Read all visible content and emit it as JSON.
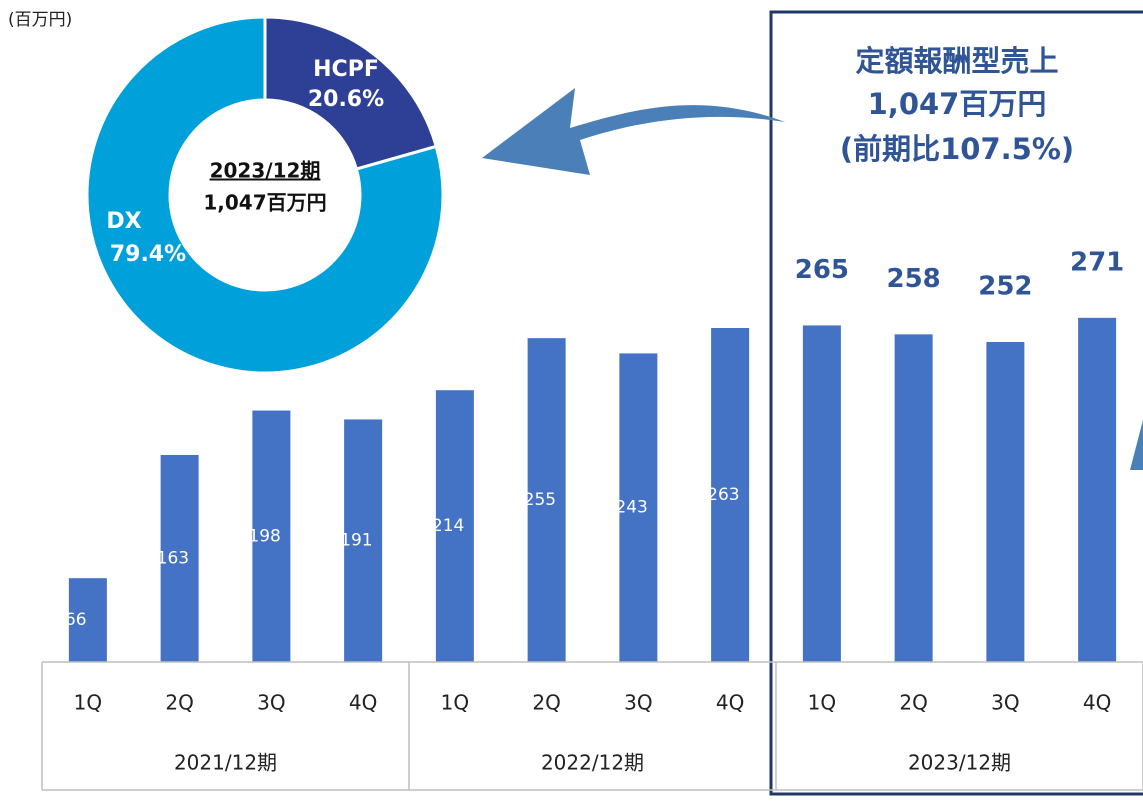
{
  "chart_data": [
    {
      "type": "bar",
      "unit_label": "(百万円)",
      "categories": [
        "1Q",
        "2Q",
        "3Q",
        "4Q",
        "1Q",
        "2Q",
        "3Q",
        "4Q",
        "1Q",
        "2Q",
        "3Q",
        "4Q"
      ],
      "group_labels": [
        "2021/12期",
        "2022/12期",
        "2023/12期"
      ],
      "values": [
        66,
        163,
        198,
        191,
        214,
        255,
        243,
        263,
        265,
        258,
        252,
        271
      ],
      "highlighted": [
        false,
        false,
        false,
        false,
        false,
        false,
        false,
        false,
        true,
        true,
        true,
        true
      ],
      "color": "#4472c4",
      "ylim": [
        0,
        300
      ],
      "annotation": [
        "定額報酬型売上",
        "1,047百万円",
        "(前期比107.5%)"
      ]
    },
    {
      "type": "pie",
      "categories": [
        "HCPF",
        "DX"
      ],
      "values": [
        20.6,
        79.4
      ],
      "value_labels": [
        "20.6%",
        "79.4%"
      ],
      "colors": [
        "#2e4095",
        "#00a0da"
      ],
      "center_text": [
        "2023/12期",
        "1,047百万円"
      ]
    }
  ]
}
